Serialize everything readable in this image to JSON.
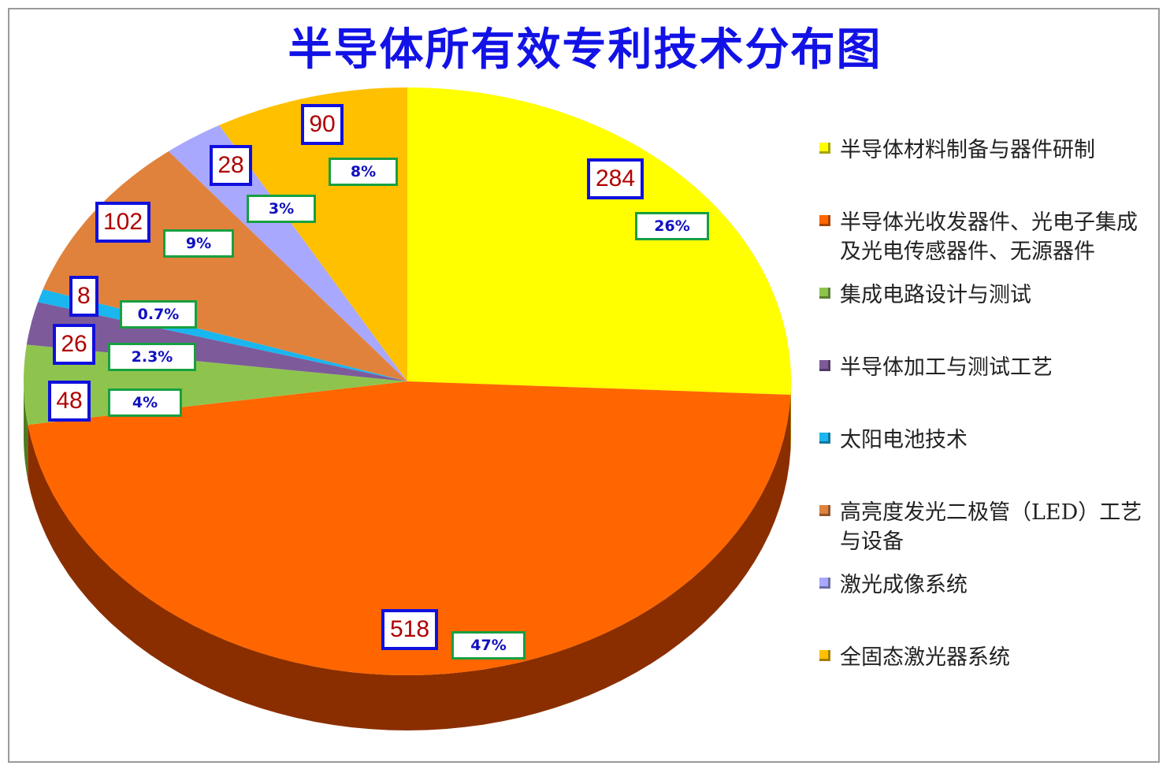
{
  "chart_data": {
    "type": "pie",
    "title": "半导体所有效专利技术分布图",
    "slices": [
      {
        "label": "半导体材料制备与器件研制",
        "value": 284,
        "percent": "26%",
        "color": "#ffff00",
        "side": "#b8b800"
      },
      {
        "label": "半导体光收发器件、光电子集成及光电传感器件、无源器件",
        "value": 518,
        "percent": "47%",
        "color": "#ff6600",
        "side": "#8a2e00"
      },
      {
        "label": "集成电路设计与测试",
        "value": 48,
        "percent": "4%",
        "color": "#8ec44e",
        "side": "#4f7a22"
      },
      {
        "label": "半导体加工与测试工艺",
        "value": 26,
        "percent": "2.3%",
        "color": "#7d5a9a",
        "side": "#3f2a55"
      },
      {
        "label": "太阳电池技术",
        "value": 8,
        "percent": "0.7%",
        "color": "#19b6f0",
        "side": "#0a6e94"
      },
      {
        "label": "高亮度发光二极管（LED）工艺与设备",
        "value": 102,
        "percent": "9%",
        "color": "#e0823c",
        "side": "#8a4a1a"
      },
      {
        "label": "激光成像系统",
        "value": 28,
        "percent": "3%",
        "color": "#a8a8ff",
        "side": "#5a5ab0"
      },
      {
        "label": "全固态激光器系统",
        "value": 90,
        "percent": "8%",
        "color": "#ffc000",
        "side": "#a07800"
      }
    ],
    "legend_position": "right"
  }
}
